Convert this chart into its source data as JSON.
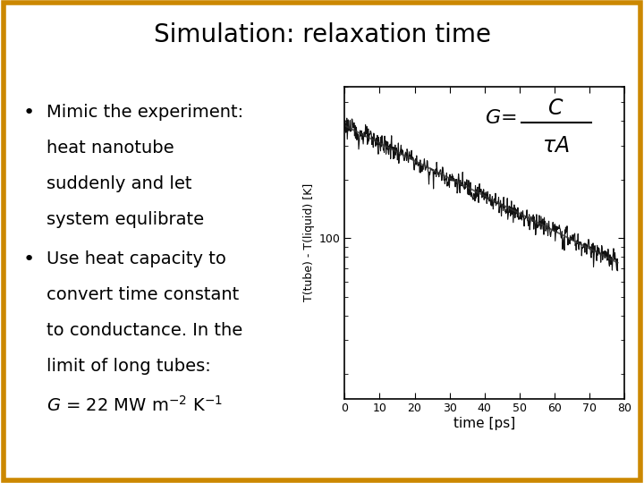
{
  "title": "Simulation: relaxation time",
  "title_fontsize": 20,
  "bg_color": "#ffffff",
  "border_color": "#cc8800",
  "header_line_color": "#1a3060",
  "bullet1_lines": [
    "Mimic the experiment:",
    "heat nanotube",
    "suddenly and let",
    "system equlibrate"
  ],
  "bullet2_lines": [
    "Use heat capacity to",
    "convert time constant",
    "to conductance. In the",
    "limit of long tubes:"
  ],
  "g_line": "$G$ = 22 MW m$^{-2}$ K$^{-1}$",
  "text_fontsize": 14,
  "plot_xlabel": "time [ps]",
  "plot_ylabel": "T(tube) - T(liquid) [K]",
  "plot_xlim": [
    0,
    80
  ],
  "plot_ylim_log": [
    15,
    600
  ],
  "plot_ytick_val": 100,
  "plot_ytick_label": "100",
  "plot_xticks": [
    0,
    10,
    20,
    30,
    40,
    50,
    60,
    70,
    80
  ],
  "decay_tau": 48,
  "decay_amplitude": 380,
  "noise_scale": 0.06,
  "fit_color": "#333333",
  "data_color": "#111111",
  "header_line_thickness": 4
}
